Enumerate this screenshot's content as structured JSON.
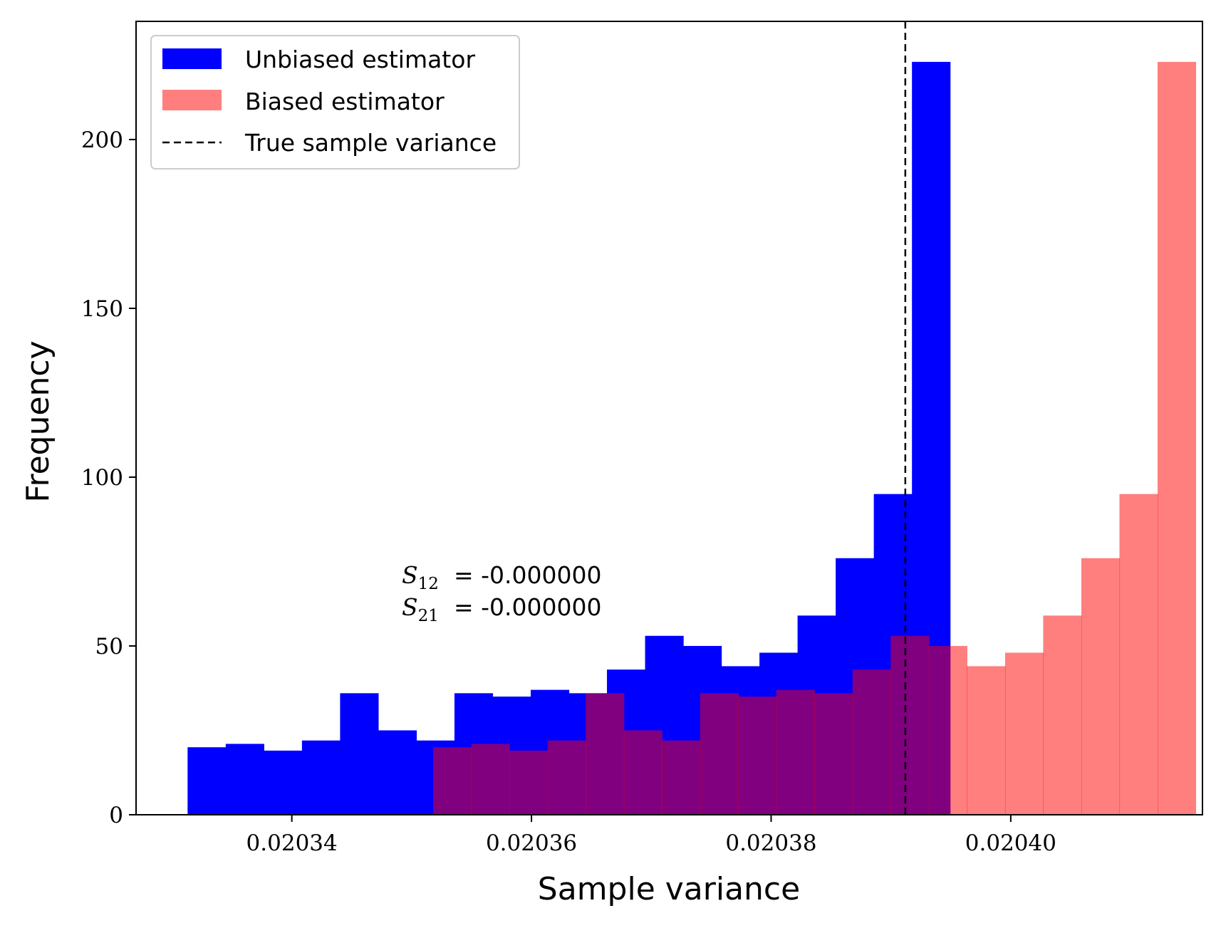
{
  "chart_data": {
    "type": "bar",
    "xlabel": "Sample variance",
    "ylabel": "Frequency",
    "xlim": [
      0.020327,
      0.020416
    ],
    "ylim": [
      0,
      235
    ],
    "xticks": [
      0.02034,
      0.02036,
      0.02038,
      0.0204
    ],
    "xtick_labels": [
      "0.02034",
      "0.02036",
      "0.02038",
      "0.02040"
    ],
    "yticks": [
      0,
      50,
      100,
      150,
      200
    ],
    "ytick_labels": [
      "0",
      "50",
      "100",
      "150",
      "200"
    ],
    "legend_position": "top-left",
    "series": [
      {
        "name": "Unbiased estimator",
        "color": "#0000ff",
        "opacity": 1.0,
        "bin_start": 0.0203313,
        "bin_width": 3.1818e-06,
        "values": [
          20,
          21,
          19,
          22,
          36,
          25,
          22,
          36,
          35,
          37,
          36,
          43,
          53,
          50,
          44,
          48,
          59,
          76,
          95,
          223
        ]
      },
      {
        "name": "Biased estimator",
        "color": "#ff0000",
        "opacity": 0.5,
        "bin_start": 0.0203518,
        "bin_width": 3.1818e-06,
        "values": [
          20,
          21,
          19,
          22,
          36,
          25,
          22,
          36,
          35,
          37,
          36,
          43,
          53,
          50,
          44,
          48,
          59,
          76,
          95,
          223
        ]
      }
    ],
    "reference_line": {
      "name": "True sample variance",
      "x": 0.0203912,
      "color": "#000000",
      "style": "dashed"
    },
    "annotation": {
      "line1_symbol": "S",
      "line1_subscript": "12",
      "line1_value": "= -0.000000",
      "line2_symbol": "S",
      "line2_subscript": "21",
      "line2_value": "= -0.000000",
      "x": 0.0203465,
      "y": 68.5
    }
  }
}
